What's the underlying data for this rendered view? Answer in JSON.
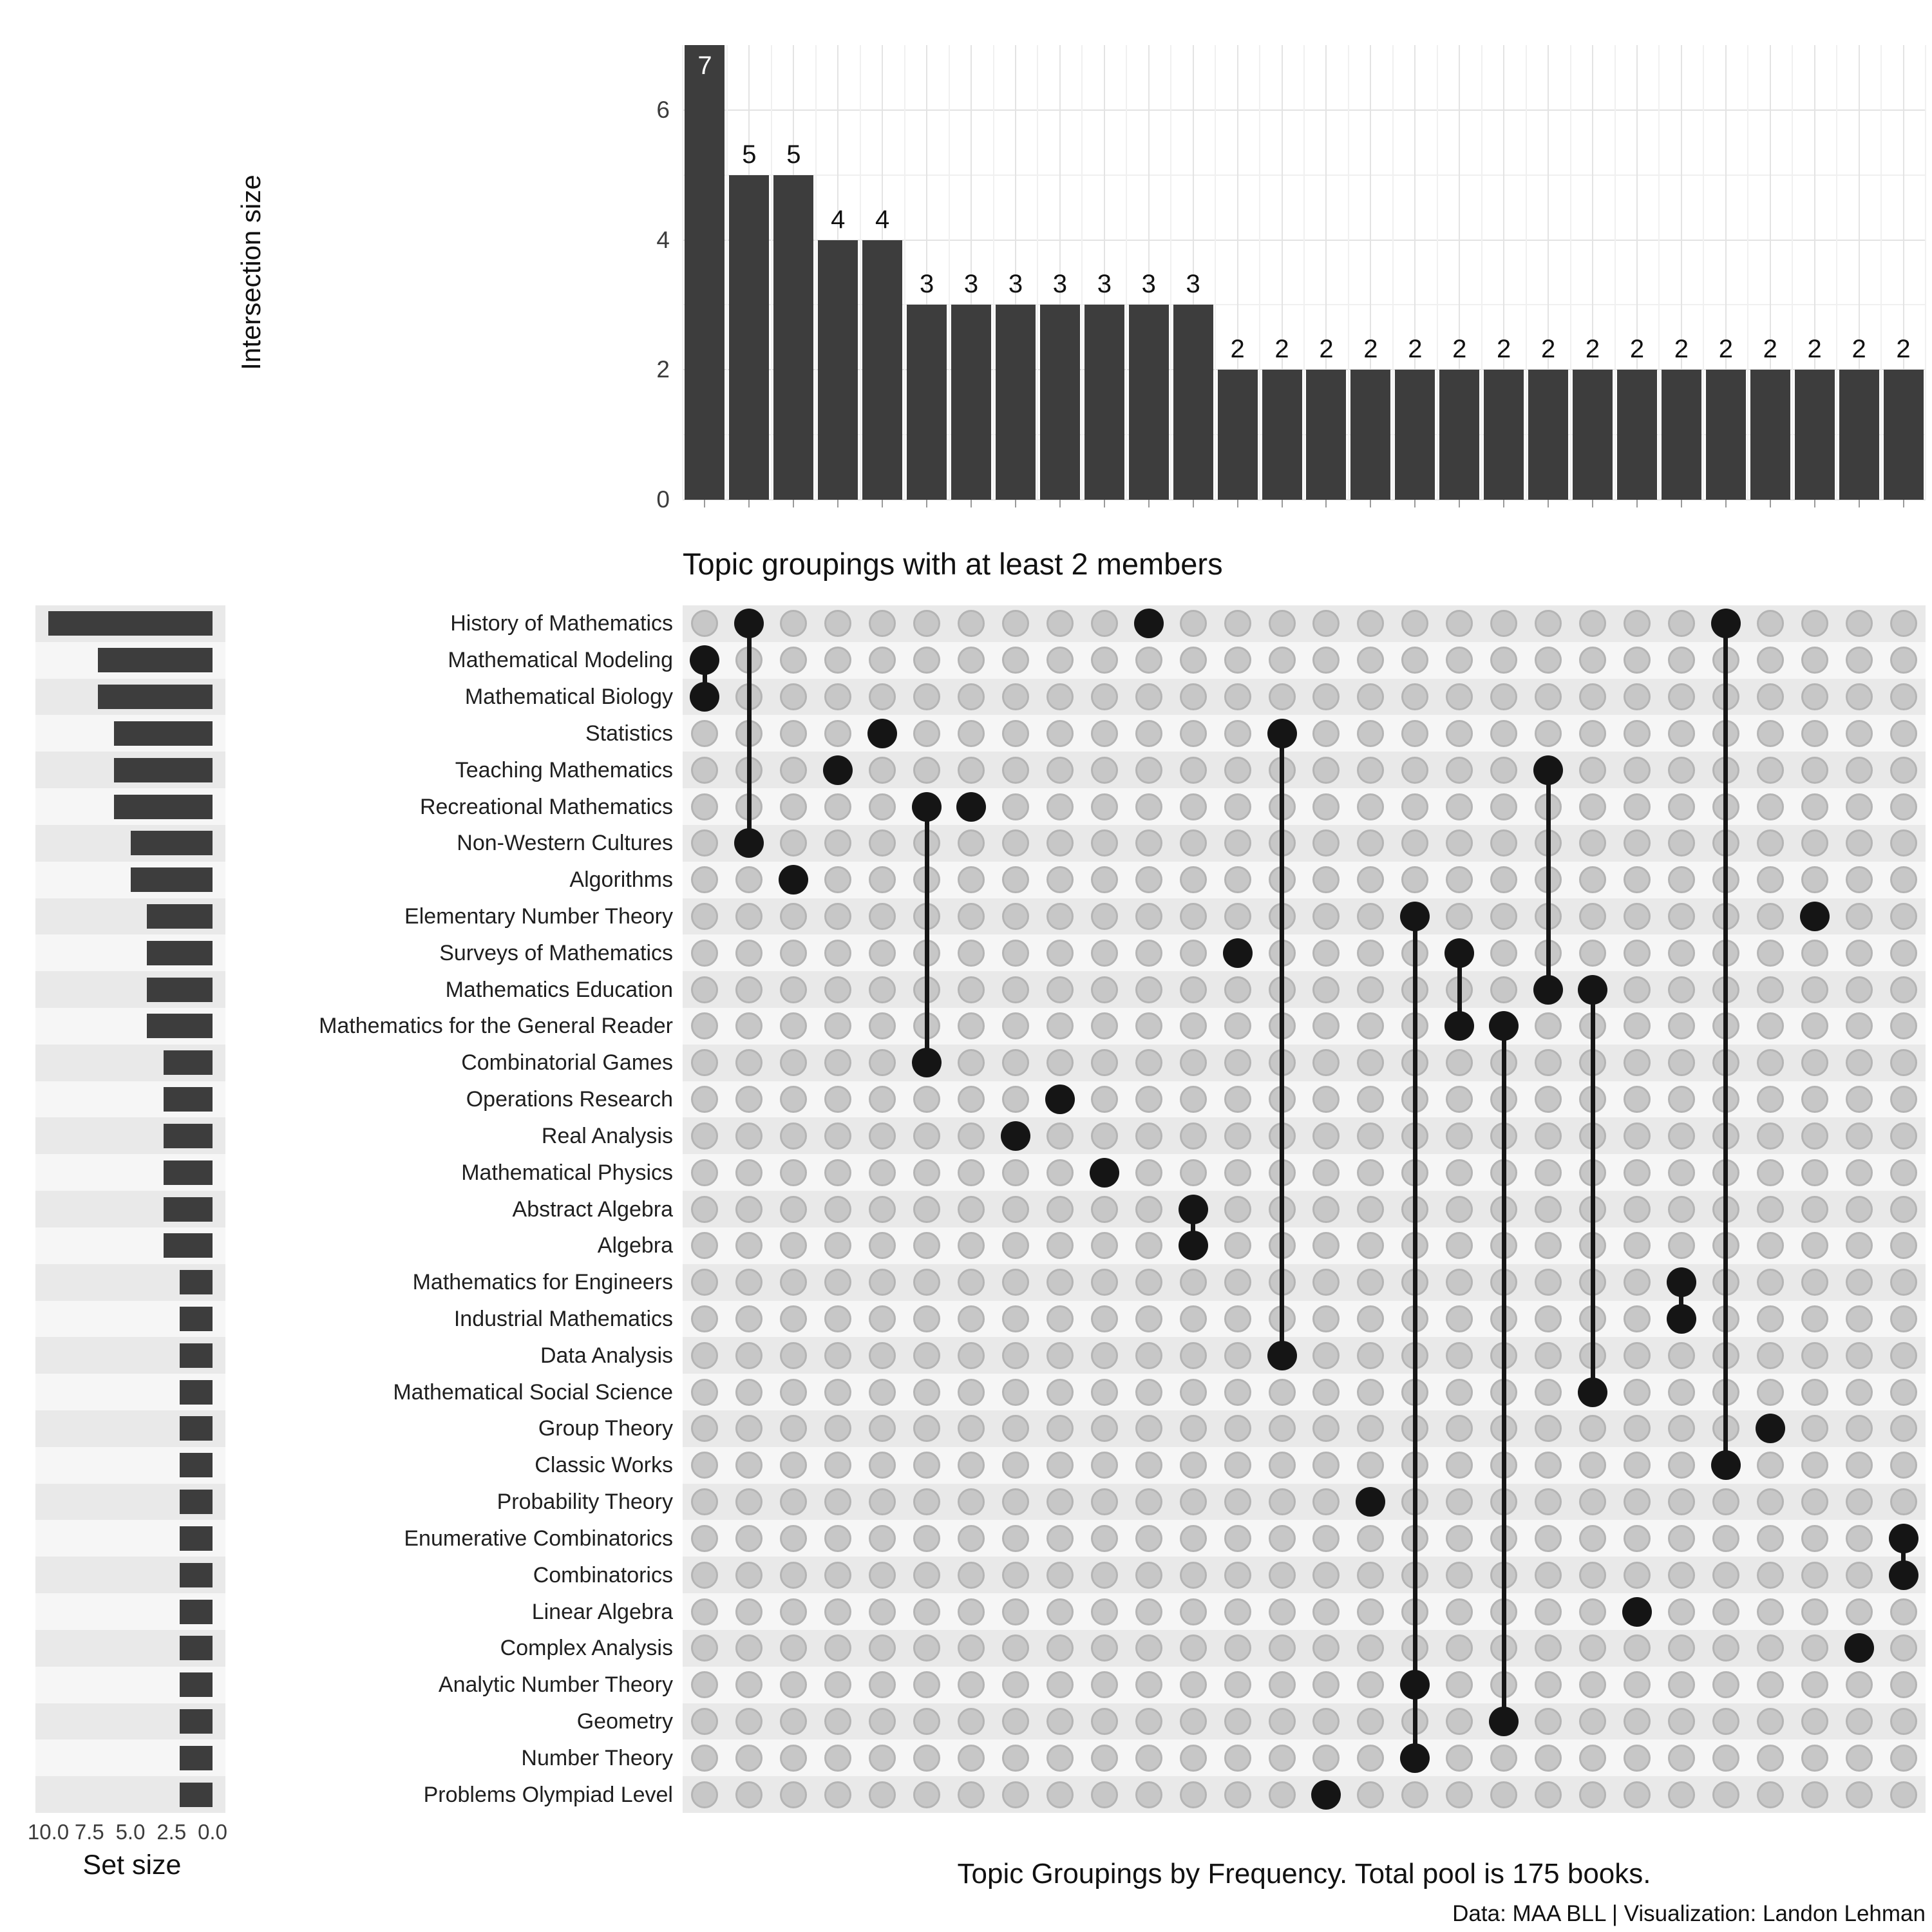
{
  "title": "Topic groupings with at least 2 members",
  "caption": "Topic Groupings by Frequency. Total pool is 175 books.",
  "credit": "Data: MAA BLL | Visualization: Landon Lehman",
  "intersection_axis": {
    "label": "Intersection size",
    "ticks": [
      0,
      2,
      4,
      6
    ],
    "minor_ticks": [
      1,
      3,
      5
    ],
    "max": 7
  },
  "set_axis": {
    "label": "Set size",
    "ticks": [
      10.0,
      7.5,
      5.0,
      2.5,
      0.0
    ],
    "max": 10
  },
  "chart_data": {
    "type": "upset",
    "title": "Topic groupings with at least 2 members",
    "caption": "Topic Groupings by Frequency. Total pool is 175 books.",
    "credit": "Data: MAA BLL | Visualization: Landon Lehman",
    "intersection_axis_label": "Intersection size",
    "set_axis_label": "Set size",
    "colors": {
      "bar": "#3d3d3d",
      "dot_active": "#151515",
      "dot_inactive": "#c7c7c7",
      "dot_inactive_border": "#b4b4b4",
      "stripe_dark": "#e9e9e9",
      "stripe_light": "#f6f6f6",
      "grid_major": "#e3e3e3",
      "grid_minor": "#f0f0f0"
    },
    "sets": [
      {
        "name": "History of Mathematics",
        "size": 10
      },
      {
        "name": "Mathematical Modeling",
        "size": 7
      },
      {
        "name": "Mathematical Biology",
        "size": 7
      },
      {
        "name": "Statistics",
        "size": 6
      },
      {
        "name": "Teaching Mathematics",
        "size": 6
      },
      {
        "name": "Recreational Mathematics",
        "size": 6
      },
      {
        "name": "Non-Western Cultures",
        "size": 5
      },
      {
        "name": "Algorithms",
        "size": 5
      },
      {
        "name": "Elementary Number Theory",
        "size": 4
      },
      {
        "name": "Surveys of Mathematics",
        "size": 4
      },
      {
        "name": "Mathematics Education",
        "size": 4
      },
      {
        "name": "Mathematics for the General Reader",
        "size": 4
      },
      {
        "name": "Combinatorial Games",
        "size": 3
      },
      {
        "name": "Operations Research",
        "size": 3
      },
      {
        "name": "Real Analysis",
        "size": 3
      },
      {
        "name": "Mathematical Physics",
        "size": 3
      },
      {
        "name": "Abstract Algebra",
        "size": 3
      },
      {
        "name": "Algebra",
        "size": 3
      },
      {
        "name": "Mathematics for Engineers",
        "size": 2
      },
      {
        "name": "Industrial Mathematics",
        "size": 2
      },
      {
        "name": "Data Analysis",
        "size": 2
      },
      {
        "name": "Mathematical Social Science",
        "size": 2
      },
      {
        "name": "Group Theory",
        "size": 2
      },
      {
        "name": "Classic Works",
        "size": 2
      },
      {
        "name": "Probability Theory",
        "size": 2
      },
      {
        "name": "Enumerative Combinatorics",
        "size": 2
      },
      {
        "name": "Combinatorics",
        "size": 2
      },
      {
        "name": "Linear Algebra",
        "size": 2
      },
      {
        "name": "Complex Analysis",
        "size": 2
      },
      {
        "name": "Analytic Number Theory",
        "size": 2
      },
      {
        "name": "Geometry",
        "size": 2
      },
      {
        "name": "Number Theory",
        "size": 2
      },
      {
        "name": "Problems Olympiad Level",
        "size": 2
      }
    ],
    "intersections": [
      {
        "size": 7,
        "members": [
          "Mathematical Modeling",
          "Mathematical Biology"
        ]
      },
      {
        "size": 5,
        "members": [
          "History of Mathematics",
          "Non-Western Cultures"
        ]
      },
      {
        "size": 5,
        "members": [
          "Algorithms"
        ]
      },
      {
        "size": 4,
        "members": [
          "Teaching Mathematics"
        ]
      },
      {
        "size": 4,
        "members": [
          "Statistics"
        ]
      },
      {
        "size": 3,
        "members": [
          "Recreational Mathematics",
          "Combinatorial Games"
        ]
      },
      {
        "size": 3,
        "members": [
          "Recreational Mathematics"
        ]
      },
      {
        "size": 3,
        "members": [
          "Real Analysis"
        ]
      },
      {
        "size": 3,
        "members": [
          "Operations Research"
        ]
      },
      {
        "size": 3,
        "members": [
          "Mathematical Physics"
        ]
      },
      {
        "size": 3,
        "members": [
          "History of Mathematics"
        ]
      },
      {
        "size": 3,
        "members": [
          "Abstract Algebra",
          "Algebra"
        ]
      },
      {
        "size": 2,
        "members": [
          "Surveys of Mathematics"
        ]
      },
      {
        "size": 2,
        "members": [
          "Statistics",
          "Data Analysis"
        ]
      },
      {
        "size": 2,
        "members": [
          "Problems Olympiad Level"
        ]
      },
      {
        "size": 2,
        "members": [
          "Probability Theory"
        ]
      },
      {
        "size": 2,
        "members": [
          "Elementary Number Theory",
          "Analytic Number Theory",
          "Number Theory"
        ]
      },
      {
        "size": 2,
        "members": [
          "Surveys of Mathematics",
          "Mathematics for the General Reader"
        ]
      },
      {
        "size": 2,
        "members": [
          "Mathematics for the General Reader",
          "Geometry"
        ]
      },
      {
        "size": 2,
        "members": [
          "Teaching Mathematics",
          "Mathematics Education"
        ]
      },
      {
        "size": 2,
        "members": [
          "Mathematics Education",
          "Mathematical Social Science"
        ]
      },
      {
        "size": 2,
        "members": [
          "Linear Algebra"
        ]
      },
      {
        "size": 2,
        "members": [
          "Mathematics for Engineers",
          "Industrial Mathematics"
        ]
      },
      {
        "size": 2,
        "members": [
          "History of Mathematics",
          "Classic Works"
        ]
      },
      {
        "size": 2,
        "members": [
          "Group Theory"
        ]
      },
      {
        "size": 2,
        "members": [
          "Elementary Number Theory"
        ]
      },
      {
        "size": 2,
        "members": [
          "Complex Analysis"
        ]
      },
      {
        "size": 2,
        "members": [
          "Enumerative Combinatorics",
          "Combinatorics"
        ]
      }
    ]
  }
}
